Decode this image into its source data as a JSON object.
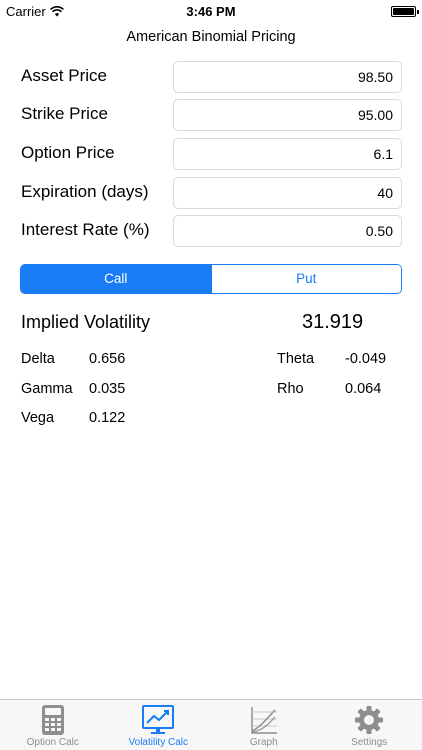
{
  "status_bar": {
    "carrier": "Carrier",
    "time": "3:46 PM"
  },
  "title": "American Binomial Pricing",
  "fields": [
    {
      "label": "Asset Price",
      "value": "98.50"
    },
    {
      "label": "Strike Price",
      "value": "95.00"
    },
    {
      "label": "Option Price",
      "value": "6.1"
    },
    {
      "label": "Expiration (days)",
      "value": "40"
    },
    {
      "label": "Interest Rate (%)",
      "value": "0.50"
    }
  ],
  "option_type": {
    "call_label": "Call",
    "put_label": "Put",
    "selected": "Call"
  },
  "results": {
    "implied_volatility_label": "Implied Volatility",
    "implied_volatility_value": "31.919",
    "greeks": {
      "delta": {
        "label": "Delta",
        "value": "0.656"
      },
      "gamma": {
        "label": "Gamma",
        "value": "0.035"
      },
      "vega": {
        "label": "Vega",
        "value": "0.122"
      },
      "theta": {
        "label": "Theta",
        "value": "-0.049"
      },
      "rho": {
        "label": "Rho",
        "value": "0.064"
      }
    }
  },
  "tabs": [
    {
      "label": "Option Calc",
      "icon": "calculator-icon"
    },
    {
      "label": "Volatility Calc",
      "icon": "volatility-chart-icon",
      "active": true
    },
    {
      "label": "Graph",
      "icon": "graph-icon"
    },
    {
      "label": "Settings",
      "icon": "gear-icon"
    }
  ],
  "colors": {
    "accent": "#1a7cf5",
    "inactive_tab": "#8e8e8e",
    "tab_bar_bg": "#f7f7f7"
  }
}
